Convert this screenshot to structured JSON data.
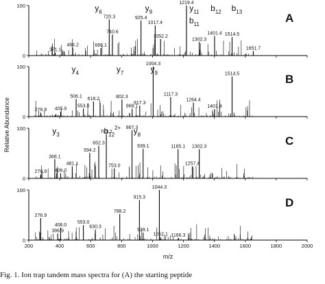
{
  "chart_data": [
    {
      "type": "bar",
      "panel_label": "A",
      "xlim": [
        200,
        2000
      ],
      "ylim": [
        0,
        100
      ],
      "xticks": [
        "200",
        "400",
        "600",
        "800",
        "1000",
        "1200",
        "1400",
        "1600",
        "1800",
        "2000"
      ],
      "yticks": [
        "0",
        "100"
      ],
      "peaks": [
        {
          "mz": 720.3,
          "intensity": 72,
          "label": "720.3"
        },
        {
          "mz": 740.6,
          "intensity": 42,
          "label": "740.6"
        },
        {
          "mz": 925.4,
          "intensity": 70,
          "label": "925.4"
        },
        {
          "mz": 1017.4,
          "intensity": 60,
          "label": "1017.4"
        },
        {
          "mz": 1052.2,
          "intensity": 33,
          "label": "1052.2"
        },
        {
          "mz": 1219.4,
          "intensity": 100,
          "label": "1219.4"
        },
        {
          "mz": 1302.3,
          "intensity": 27,
          "label": "1302.3"
        },
        {
          "mz": 1401.4,
          "intensity": 39,
          "label": "1401.4"
        },
        {
          "mz": 1514.5,
          "intensity": 37,
          "label": "1514.5"
        },
        {
          "mz": 1651.7,
          "intensity": 9,
          "label": "1651.7"
        },
        {
          "mz": 371.1,
          "intensity": 6,
          "label": "371.1"
        },
        {
          "mz": 484.2,
          "intensity": 16,
          "label": "484.2"
        },
        {
          "mz": 666.1,
          "intensity": 15,
          "label": "666.1"
        }
      ],
      "ion_labels": [
        {
          "base": "y",
          "sub": "6",
          "mz": 650
        },
        {
          "base": "y",
          "sub": "9",
          "mz": 975
        },
        {
          "base": "y",
          "sub": "11",
          "mz": 1270
        },
        {
          "base": "b",
          "sub": "11",
          "mz": 1270,
          "row": 2
        },
        {
          "base": "b",
          "sub": "12",
          "mz": 1410
        },
        {
          "base": "b",
          "sub": "13",
          "mz": 1545
        }
      ]
    },
    {
      "type": "bar",
      "panel_label": "B",
      "xlim": [
        200,
        2000
      ],
      "ylim": [
        0,
        100
      ],
      "xticks": [
        "200",
        "400",
        "600",
        "800",
        "1000",
        "1200",
        "1400",
        "1600",
        "1800",
        "2000"
      ],
      "yticks": [
        "0",
        "100"
      ],
      "peaks": [
        {
          "mz": 276.9,
          "intensity": 8,
          "label": "276.9"
        },
        {
          "mz": 405.9,
          "intensity": 10,
          "label": "405.9"
        },
        {
          "mz": 506.1,
          "intensity": 35,
          "label": "506.1"
        },
        {
          "mz": 553.0,
          "intensity": 16,
          "label": "553.0"
        },
        {
          "mz": 618.2,
          "intensity": 30,
          "label": "618.2"
        },
        {
          "mz": 802.3,
          "intensity": 34,
          "label": "802.3"
        },
        {
          "mz": 868.1,
          "intensity": 16,
          "label": "868.1"
        },
        {
          "mz": 917.3,
          "intensity": 22,
          "label": "917.3"
        },
        {
          "mz": 1004.3,
          "intensity": 100,
          "label": "1004.3"
        },
        {
          "mz": 1117.3,
          "intensity": 39,
          "label": "1117.3"
        },
        {
          "mz": 1264.4,
          "intensity": 28,
          "label": "1264.4"
        },
        {
          "mz": 1401.4,
          "intensity": 15,
          "label": "1401.4"
        },
        {
          "mz": 1514.5,
          "intensity": 80,
          "label": "1514.5"
        }
      ],
      "ion_labels": [
        {
          "base": "y",
          "sub": "4",
          "mz": 500
        },
        {
          "base": "y",
          "sub": "7",
          "mz": 790
        },
        {
          "base": "y",
          "sub": "9",
          "mz": 1010
        }
      ]
    },
    {
      "type": "bar",
      "panel_label": "C",
      "xlim": [
        200,
        2000
      ],
      "ylim": [
        0,
        100
      ],
      "xticks": [
        "200",
        "400",
        "600",
        "800",
        "1000",
        "1200",
        "1400",
        "1600",
        "1800",
        "2000"
      ],
      "yticks": [
        "0",
        "100"
      ],
      "peaks": [
        {
          "mz": 276.9,
          "intensity": 8,
          "label": "276.9"
        },
        {
          "mz": 368.1,
          "intensity": 38,
          "label": "368.1"
        },
        {
          "mz": 406.0,
          "intensity": 10,
          "label": "406.0"
        },
        {
          "mz": 481.1,
          "intensity": 24,
          "label": "481.1"
        },
        {
          "mz": 594.2,
          "intensity": 51,
          "label": "594.2"
        },
        {
          "mz": 652.3,
          "intensity": 65,
          "label": "652.3"
        },
        {
          "mz": 701.2,
          "intensity": 88,
          "label": "701.2"
        },
        {
          "mz": 753.0,
          "intensity": 20,
          "label": "753.0"
        },
        {
          "mz": 867.3,
          "intensity": 96,
          "label": "867.3"
        },
        {
          "mz": 939.1,
          "intensity": 59,
          "label": "939.1"
        },
        {
          "mz": 1165.1,
          "intensity": 58,
          "label": "1165.1"
        },
        {
          "mz": 1257.4,
          "intensity": 24,
          "label": "1257.4"
        },
        {
          "mz": 1302.3,
          "intensity": 58,
          "label": "1302.3"
        }
      ],
      "ion_labels": [
        {
          "base": "y",
          "sub": "3",
          "mz": 375
        },
        {
          "base": "b",
          "sub": "12",
          "sup": "2+",
          "mz": 740
        },
        {
          "base": "y",
          "sub": "8",
          "mz": 900
        }
      ]
    },
    {
      "type": "bar",
      "panel_label": "D",
      "xlim": [
        200,
        2000
      ],
      "ylim": [
        0,
        100
      ],
      "xticks": [
        "200",
        "400",
        "600",
        "800",
        "1000",
        "1200",
        "1400",
        "1600",
        "1800",
        "2000"
      ],
      "yticks": [
        "0",
        "100"
      ],
      "peaks": [
        {
          "mz": 276.9,
          "intensity": 44,
          "label": "276.9"
        },
        {
          "mz": 386.9,
          "intensity": 13,
          "label": "386.9"
        },
        {
          "mz": 406.0,
          "intensity": 25,
          "label": "406.0"
        },
        {
          "mz": 553.0,
          "intensity": 30,
          "label": "553.0"
        },
        {
          "mz": 630.3,
          "intensity": 21,
          "label": "630.3"
        },
        {
          "mz": 788.2,
          "intensity": 52,
          "label": "788.2"
        },
        {
          "mz": 915.3,
          "intensity": 80,
          "label": "915.3"
        },
        {
          "mz": 939.1,
          "intensity": 15,
          "label": "939.1"
        },
        {
          "mz": 1044.3,
          "intensity": 100,
          "label": "1044.3"
        },
        {
          "mz": 1052.1,
          "intensity": 6,
          "label": "1052.1"
        },
        {
          "mz": 1166.3,
          "intensity": 4,
          "label": "1166.3"
        }
      ],
      "ion_labels": []
    }
  ],
  "y_axis_title": "Relative Abundance",
  "x_axis_title": "m/z",
  "caption": "Fig. 1. Ion trap tandem mass spectra for (A) the starting peptide"
}
